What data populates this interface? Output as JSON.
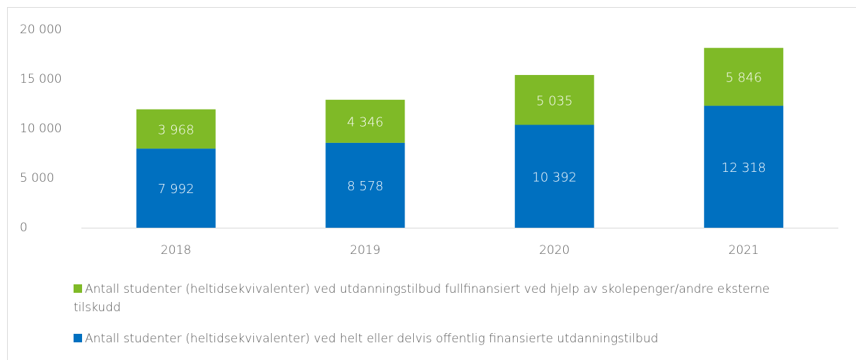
{
  "chart_data": {
    "type": "stacked_bar",
    "categories": [
      "2018",
      "2019",
      "2020",
      "2021"
    ],
    "series": [
      {
        "name": "Antall studenter (heltidsekvivalenter) ved helt eller delvis offentlig finansierte utdanningstilbud",
        "color": "#0070c0",
        "values": [
          7992,
          8578,
          10392,
          12318
        ],
        "value_labels": [
          "7 992",
          "8 578",
          "10 392",
          "12 318"
        ]
      },
      {
        "name": "Antall studenter (heltidsekvivalenter) ved utdanningstilbud fullfinansiert ved hjelp av skolepenger/andre eksterne tilskudd",
        "color": "#7fba27",
        "values": [
          3968,
          4346,
          5035,
          5846
        ],
        "value_labels": [
          "3 968",
          "4 346",
          "5 035",
          "5 846"
        ]
      }
    ],
    "ylim": [
      0,
      20000
    ],
    "yticks": [
      {
        "value": 0,
        "label": "0"
      },
      {
        "value": 5000,
        "label": "5 000"
      },
      {
        "value": 10000,
        "label": "10 000"
      },
      {
        "value": 15000,
        "label": "15 000"
      },
      {
        "value": 20000,
        "label": "20 000"
      }
    ],
    "grid": false
  }
}
